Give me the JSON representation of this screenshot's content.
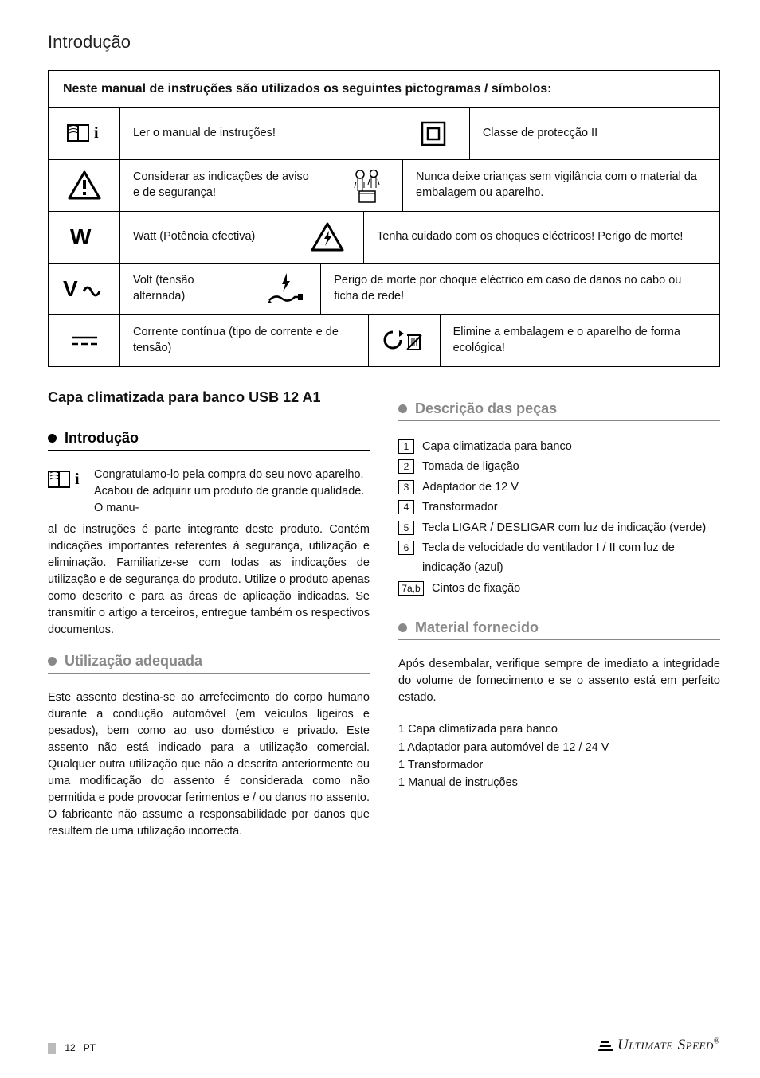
{
  "page": {
    "title": "Introdução",
    "number": "12",
    "region": "PT",
    "logo": "ULTIMATE SPEED"
  },
  "pictogram_table": {
    "header": "Neste manual de instruções são utilizados os seguintes pictogramas / símbolos:",
    "rows": [
      {
        "left_icon": "manual-icon",
        "left_text": "Ler o manual de instruções!",
        "right_icon": "class2-icon",
        "right_text": "Classe de protecção II"
      },
      {
        "left_icon": "warning-icon",
        "left_text": "Considerar as indicações de aviso e de segurança!",
        "right_icon": "children-icon",
        "right_text": "Nunca deixe crianças sem vigilância com o material da embalagem ou aparelho."
      },
      {
        "left_icon": "watt-icon",
        "left_text": "Watt (Potência efectiva)",
        "right_icon": "shock-icon",
        "right_text": "Tenha cuidado com os choques eléctricos! Perigo de morte!"
      },
      {
        "left_icon": "volt-ac-icon",
        "left_text": "Volt (tensão alternada)",
        "right_icon": "cable-icon",
        "right_text": "Perigo de morte por choque eléctrico em caso de danos no cabo ou ficha de rede!"
      },
      {
        "left_icon": "dc-icon",
        "left_text": "Corrente contínua (tipo de corrente e de tensão)",
        "right_icon": "recycle-icon",
        "right_text": "Elimine a embalagem e o aparelho de forma ecológica!"
      }
    ]
  },
  "left_column": {
    "product_title": "Capa climatizada para banco USB 12 A1",
    "intro_heading": "Introdução",
    "intro_first": "Congratulamo-lo pela compra do seu novo aparelho. Acabou de adquirir um produto de grande qualidade. O manu-",
    "intro_rest": "al de instruções é parte integrante deste produto. Contém indicações importantes referentes à segurança, utilização e eliminação. Familiarize-se com todas as indicações de utilização e de segurança do produto. Utilize o produto apenas como descrito e para as áreas de aplicação indicadas. Se transmitir o artigo a terceiros, entregue também os respectivos documentos.",
    "usage_heading": "Utilização adequada",
    "usage_text": "Este assento destina-se ao arrefecimento do corpo humano durante a condução automóvel (em veículos ligeiros e pesados), bem como ao uso doméstico e privado. Este assento não está indicado para a utilização comercial. Qualquer outra utilização que não a descrita anteriormente ou uma modificação do assento é considerada como não permitida e pode provocar ferimentos e / ou danos no assento. O fabricante não assume a responsabilidade por danos que resultem de uma utilização incorrecta."
  },
  "right_column": {
    "parts_heading": "Descrição das peças",
    "parts": [
      {
        "n": "1",
        "text": "Capa climatizada para banco"
      },
      {
        "n": "2",
        "text": "Tomada de ligação"
      },
      {
        "n": "3",
        "text": "Adaptador de 12 V"
      },
      {
        "n": "4",
        "text": "Transformador"
      },
      {
        "n": "5",
        "text": "Tecla LIGAR / DESLIGAR com luz de indicação (verde)"
      },
      {
        "n": "6",
        "text": "Tecla de velocidade do ventilador I / II com luz de indicação (azul)"
      },
      {
        "n": "7a,b",
        "text": "Cintos de fixação",
        "wide": true
      }
    ],
    "supply_heading": "Material fornecido",
    "supply_intro": "Após desembalar, verifique sempre de imediato a integridade do volume de fornecimento e se o assento está em perfeito estado.",
    "supply_items": [
      "1 Capa climatizada para banco",
      "1 Adaptador para automóvel de 12 / 24 V",
      "1 Transformador",
      "1 Manual de instruções"
    ]
  },
  "colors": {
    "text": "#111111",
    "muted": "#888888",
    "border": "#000000",
    "bg": "#ffffff"
  }
}
